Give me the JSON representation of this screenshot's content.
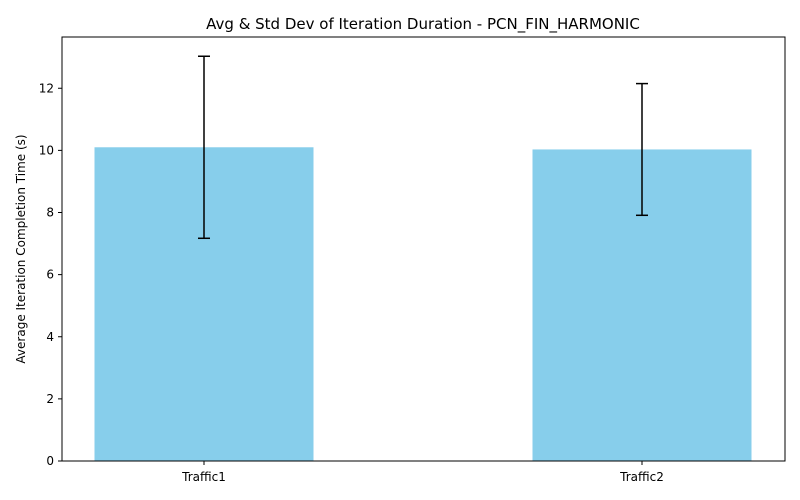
{
  "chart_data": {
    "type": "bar",
    "title": "Avg & Std Dev of Iteration Duration - PCN_FIN_HARMONIC",
    "xlabel": "",
    "ylabel": "Average Iteration Completion Time (s)",
    "categories": [
      "Traffic1",
      "Traffic2"
    ],
    "values": [
      10.1,
      10.03
    ],
    "errors": [
      2.93,
      2.12
    ],
    "ylim": [
      0,
      13.65
    ],
    "yticks": [
      0,
      2,
      4,
      6,
      8,
      10,
      12
    ],
    "bar_color": "#87CEEB",
    "error_color": "#000000",
    "grid": false
  }
}
